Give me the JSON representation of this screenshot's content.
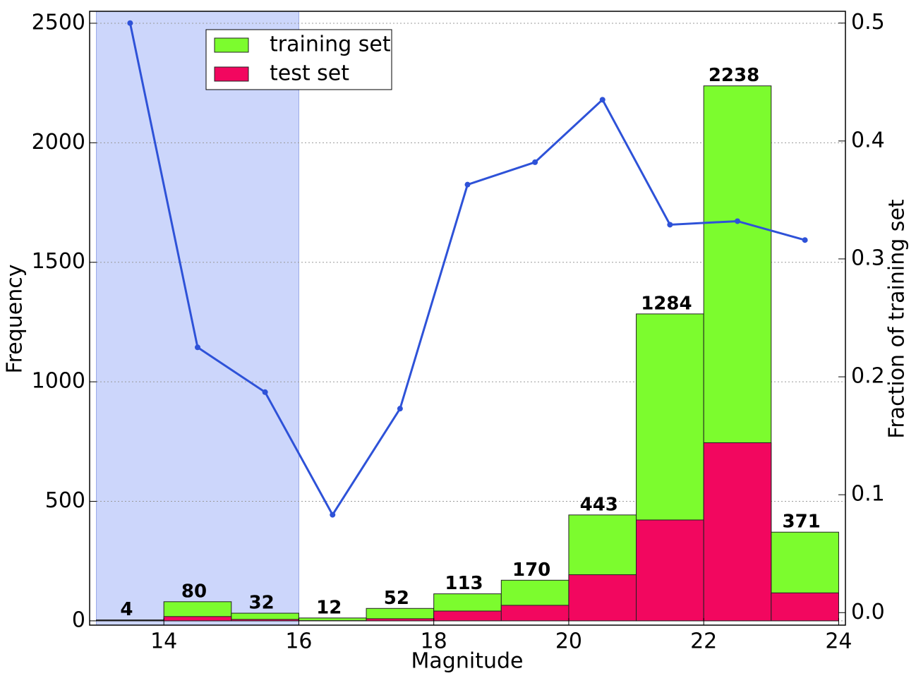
{
  "chart_data": {
    "type": "histogram",
    "xlabel": "Magnitude",
    "ylabel": "Frequency",
    "y2label": "Fraction of training set",
    "bins": [
      13,
      14,
      15,
      16,
      17,
      18,
      19,
      20,
      21,
      22,
      23,
      24
    ],
    "series": [
      {
        "name": "training set",
        "color": "#7cfc2e",
        "values": [
          4,
          80,
          32,
          12,
          52,
          113,
          170,
          443,
          1284,
          2238,
          371
        ]
      },
      {
        "name": "test set",
        "color": "#f2075f",
        "values": [
          2,
          18,
          6,
          1,
          9,
          41,
          65,
          193,
          422,
          745,
          117
        ]
      },
      {
        "type": "line",
        "axis": "y2",
        "color": "#2e52d8",
        "x": [
          13.5,
          14.5,
          15.5,
          16.5,
          17.5,
          18.5,
          19.5,
          20.5,
          21.5,
          22.5,
          23.5
        ],
        "values": [
          0.5,
          0.225,
          0.187,
          0.083,
          0.173,
          0.363,
          0.382,
          0.435,
          0.329,
          0.332,
          0.316
        ]
      }
    ],
    "highlight_span": [
      13,
      16
    ],
    "highlight_color": "#ccd6fb",
    "xlim": [
      12.9,
      24.1
    ],
    "ylim": [
      -18,
      2550
    ],
    "y2lim": [
      -0.0106,
      0.51
    ],
    "xticks": [
      14,
      16,
      18,
      20,
      22,
      24
    ],
    "yticks": [
      0,
      500,
      1000,
      1500,
      2000,
      2500
    ],
    "y2ticks": [
      {
        "value": 0,
        "label": "0.0"
      },
      0.1,
      0.2,
      0.3,
      0.4,
      0.5
    ],
    "grid": true,
    "legend": "upper-left"
  }
}
